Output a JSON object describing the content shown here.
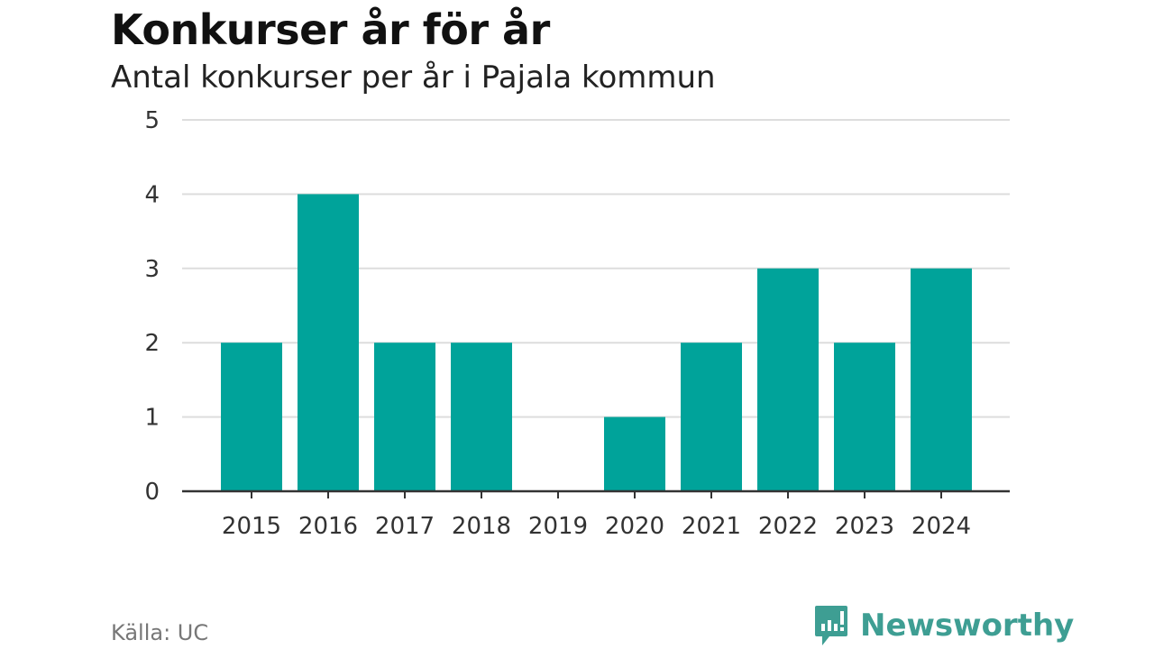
{
  "chart_data": {
    "type": "bar",
    "title": "Konkurser år för år",
    "subtitle": "Antal konkurser per år i Pajala kommun",
    "categories": [
      "2015",
      "2016",
      "2017",
      "2018",
      "2019",
      "2020",
      "2021",
      "2022",
      "2023",
      "2024"
    ],
    "values": [
      2,
      4,
      2,
      2,
      0,
      1,
      2,
      3,
      2,
      3
    ],
    "xlabel": "",
    "ylabel": "",
    "ylim": [
      0,
      5
    ],
    "yticks": [
      "0",
      "1",
      "2",
      "3",
      "4",
      "5"
    ],
    "grid": true,
    "bar_color": "#00a39a",
    "source": "Källa: UC"
  },
  "logo": {
    "text": "Newsworthy",
    "color": "#3e9e93"
  }
}
